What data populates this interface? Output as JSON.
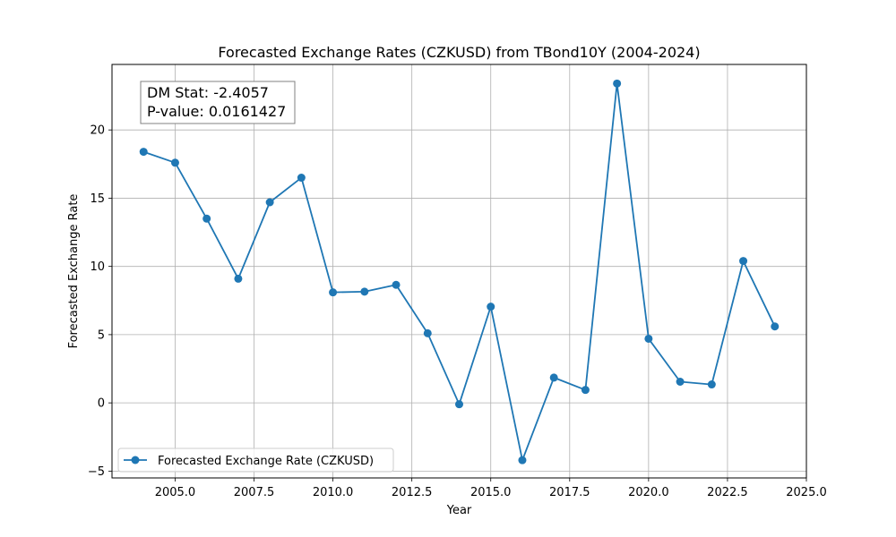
{
  "chart_data": {
    "type": "line",
    "title": "Forecasted Exchange Rates (CZKUSD) from TBond10Y (2004-2024)",
    "xlabel": "Year",
    "ylabel": "Forecasted Exchange Rate",
    "xlim": [
      2003.0,
      2025.0
    ],
    "ylim": [
      -5.5,
      24.8
    ],
    "xticks": [
      2005.0,
      2007.5,
      2010.0,
      2012.5,
      2015.0,
      2017.5,
      2020.0,
      2022.5,
      2025.0
    ],
    "xtick_labels": [
      "2005.0",
      "2007.5",
      "2010.0",
      "2012.5",
      "2015.0",
      "2017.5",
      "2020.0",
      "2022.5",
      "2025.0"
    ],
    "yticks": [
      -5,
      0,
      5,
      10,
      15,
      20
    ],
    "ytick_labels": [
      "−5",
      "0",
      "5",
      "10",
      "15",
      "20"
    ],
    "grid": true,
    "legend_position": "lower-left",
    "series": [
      {
        "name": "Forecasted Exchange Rate (CZKUSD)",
        "color": "#1f77b4",
        "marker": "circle",
        "x": [
          2004,
          2005,
          2006,
          2007,
          2008,
          2009,
          2010,
          2011,
          2012,
          2013,
          2014,
          2015,
          2016,
          2017,
          2018,
          2019,
          2020,
          2021,
          2022,
          2023,
          2024
        ],
        "y": [
          18.4,
          17.6,
          13.5,
          9.1,
          14.7,
          16.5,
          8.1,
          8.15,
          8.65,
          5.1,
          -0.1,
          7.05,
          -4.2,
          1.85,
          0.95,
          23.4,
          4.7,
          1.55,
          1.35,
          10.4,
          5.6
        ]
      }
    ],
    "annotations": {
      "dm_stat": "DM Stat: -2.4057",
      "p_value": "P-value: 0.0161427"
    }
  }
}
